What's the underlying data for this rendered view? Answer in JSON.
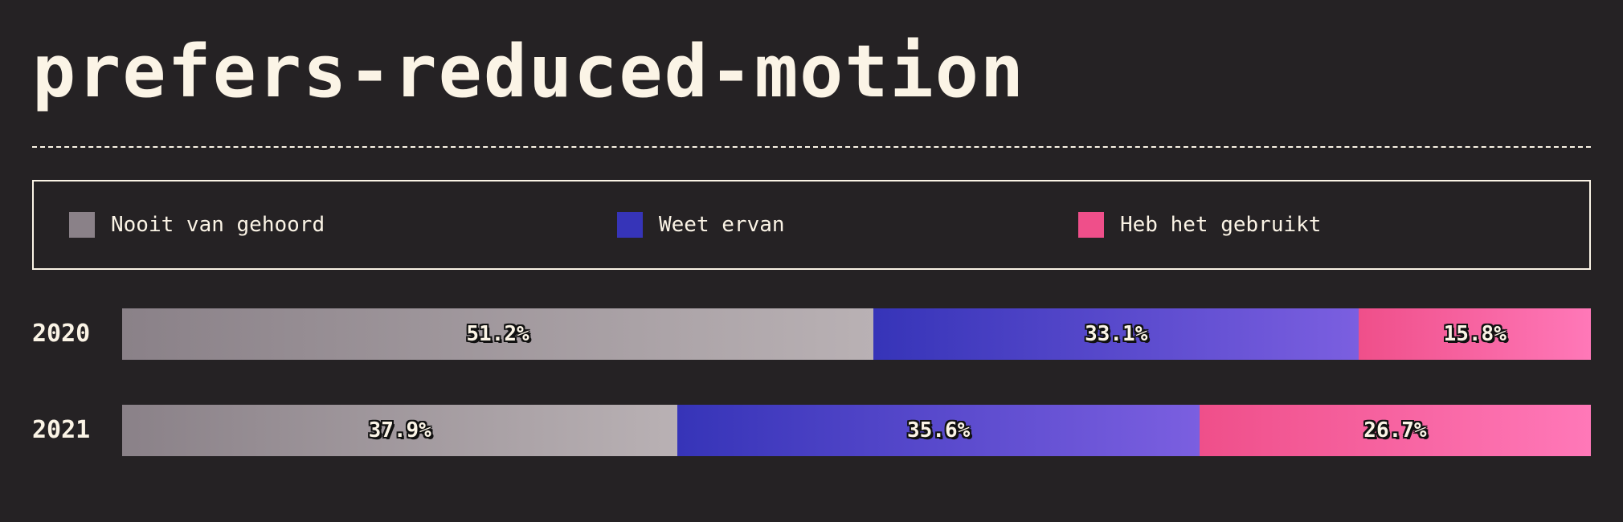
{
  "title": "prefers-reduced-motion",
  "chart_data": {
    "type": "bar",
    "stacked": true,
    "orientation": "horizontal",
    "title": "prefers-reduced-motion",
    "categories": [
      "2020",
      "2021"
    ],
    "series": [
      {
        "name": "Nooit van gehoord",
        "values": [
          51.2,
          37.9
        ],
        "labels": [
          "51.2%",
          "37.9%"
        ],
        "color_start": "#8a8188",
        "color_end": "#b9b1b4"
      },
      {
        "name": "Weet ervan",
        "values": [
          33.1,
          35.6
        ],
        "labels": [
          "33.1%",
          "35.6%"
        ],
        "color_start": "#3634b8",
        "color_end": "#7b5fe0"
      },
      {
        "name": "Heb het gebruikt",
        "values": [
          15.8,
          26.7
        ],
        "labels": [
          "15.8%",
          "26.7%"
        ],
        "color_start": "#ef4f8a",
        "color_end": "#ff78b8"
      }
    ],
    "xlim": [
      0,
      100
    ],
    "unit": "%",
    "legend_position": "top",
    "grid": false
  },
  "colors": {
    "background": "#252224",
    "foreground": "#fbf4e6"
  }
}
